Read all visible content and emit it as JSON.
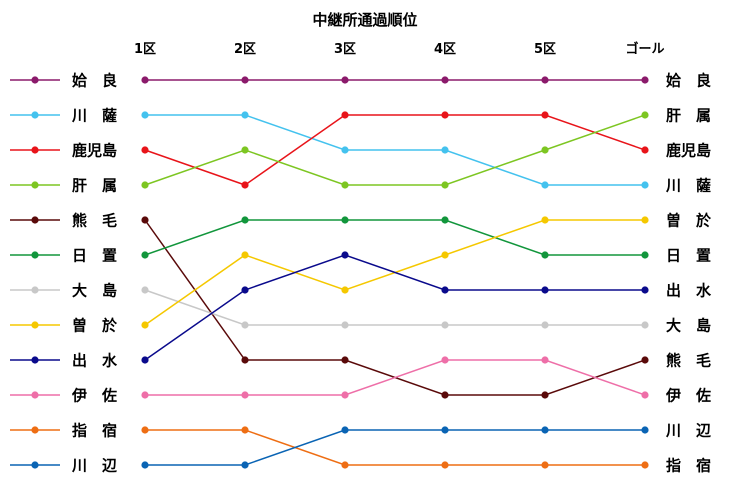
{
  "chart_data": {
    "type": "line",
    "title": "中継所通過順位",
    "categories": [
      "1区",
      "2区",
      "3区",
      "4区",
      "5区",
      "ゴール"
    ],
    "rank_range": [
      1,
      12
    ],
    "series": [
      {
        "name": "姶良",
        "display": "姶　良",
        "color": "#8b1a6b",
        "ranks": [
          1,
          1,
          1,
          1,
          1,
          1
        ]
      },
      {
        "name": "川薩",
        "display": "川　薩",
        "color": "#44c2ee",
        "ranks": [
          2,
          2,
          3,
          3,
          4,
          4
        ]
      },
      {
        "name": "鹿児島",
        "display": "鹿児島",
        "color": "#e8141a",
        "ranks": [
          3,
          4,
          2,
          2,
          2,
          3
        ]
      },
      {
        "name": "肝属",
        "display": "肝　属",
        "color": "#7dc622",
        "ranks": [
          4,
          3,
          4,
          4,
          3,
          2
        ]
      },
      {
        "name": "熊毛",
        "display": "熊　毛",
        "color": "#5a0a0a",
        "ranks": [
          5,
          9,
          9,
          10,
          10,
          9
        ]
      },
      {
        "name": "日置",
        "display": "日　置",
        "color": "#12963c",
        "ranks": [
          6,
          5,
          5,
          5,
          6,
          6
        ]
      },
      {
        "name": "大島",
        "display": "大　島",
        "color": "#c8c8c8",
        "ranks": [
          7,
          8,
          8,
          8,
          8,
          8
        ]
      },
      {
        "name": "曽於",
        "display": "曽　於",
        "color": "#f5c800",
        "ranks": [
          8,
          6,
          7,
          6,
          5,
          5
        ]
      },
      {
        "name": "出水",
        "display": "出　水",
        "color": "#0a0a8c",
        "ranks": [
          9,
          7,
          6,
          7,
          7,
          7
        ]
      },
      {
        "name": "伊佐",
        "display": "伊　佐",
        "color": "#ee6fa8",
        "ranks": [
          10,
          10,
          10,
          9,
          9,
          10
        ]
      },
      {
        "name": "指宿",
        "display": "指　宿",
        "color": "#ee6e14",
        "ranks": [
          11,
          11,
          12,
          12,
          12,
          12
        ]
      },
      {
        "name": "川辺",
        "display": "川　辺",
        "color": "#0a64b4",
        "ranks": [
          12,
          12,
          11,
          11,
          11,
          11
        ]
      }
    ]
  }
}
